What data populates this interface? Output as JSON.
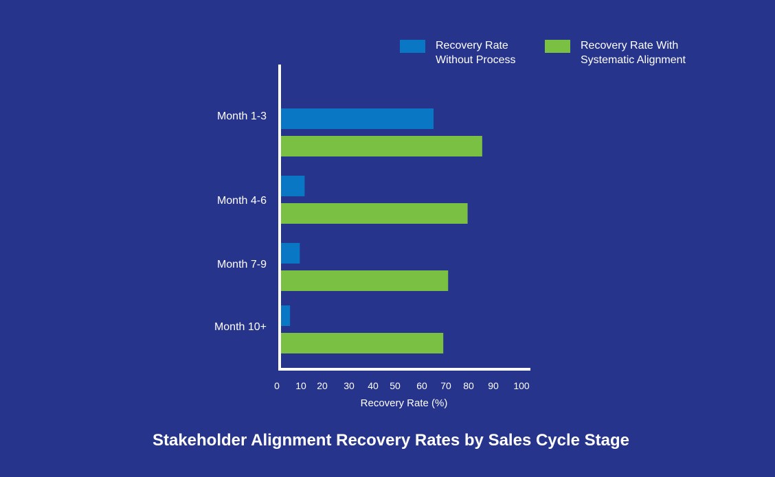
{
  "colors": {
    "background": "#27348b",
    "series_without": "#0a77c4",
    "series_with": "#7ac143",
    "axis": "#ffffff",
    "text": "#ffffff"
  },
  "chart_data": {
    "type": "bar",
    "orientation": "horizontal",
    "title": "Stakeholder Alignment Recovery Rates by Sales Cycle Stage",
    "xlabel": "Recovery Rate (%)",
    "ylabel": "",
    "categories": [
      "Month 1-3",
      "Month 4-6",
      "Month 7-9",
      "Month 10+"
    ],
    "series": [
      {
        "name": "Recovery Rate Without Process",
        "legend_lines": [
          "Recovery Rate",
          "Without Process"
        ],
        "color": "#0a77c4",
        "values": [
          63,
          10,
          8,
          4
        ]
      },
      {
        "name": "Recovery Rate With Systematic Alignment",
        "legend_lines": [
          "Recovery Rate With",
          "Systematic Alignment"
        ],
        "color": "#7ac143",
        "values": [
          83,
          77,
          69,
          67
        ]
      }
    ],
    "xticks": [
      "0",
      "10",
      "20",
      "30",
      "40",
      "50",
      "60",
      "70",
      "80",
      "90",
      "100"
    ],
    "xlim": [
      0,
      100
    ],
    "grid": false,
    "legend_position": "top-right"
  }
}
